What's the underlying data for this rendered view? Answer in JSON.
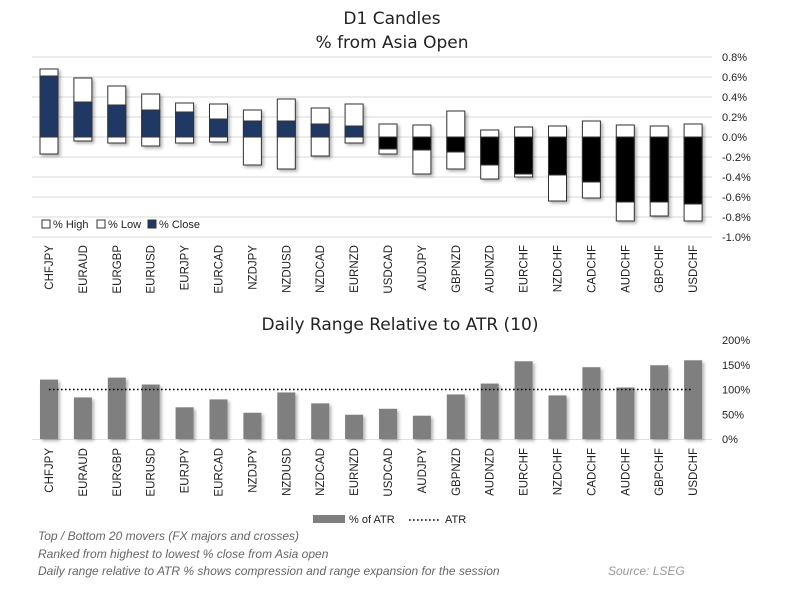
{
  "chart_data": [
    {
      "type": "candlestick",
      "title": "D1 Candles",
      "subtitle": "% from Asia Open",
      "categories": [
        "CHFJPY",
        "EURAUD",
        "EURGBP",
        "EURUSD",
        "EURJPY",
        "EURCAD",
        "NZDJPY",
        "NZDUSD",
        "NZDCAD",
        "EURNZD",
        "USDCAD",
        "AUDJPY",
        "GBPNZD",
        "AUDNZD",
        "EURCHF",
        "NZDCHF",
        "CADCHF",
        "AUDCHF",
        "GBPCHF",
        "USDCHF"
      ],
      "series": [
        {
          "name": "% High",
          "values": [
            0.68,
            0.59,
            0.51,
            0.43,
            0.34,
            0.33,
            0.27,
            0.38,
            0.29,
            0.33,
            0.13,
            0.12,
            0.26,
            0.07,
            0.1,
            0.11,
            0.16,
            0.12,
            0.11,
            0.13
          ]
        },
        {
          "name": "% Low",
          "values": [
            -0.17,
            -0.04,
            -0.06,
            -0.09,
            -0.06,
            -0.05,
            -0.28,
            -0.32,
            -0.19,
            -0.06,
            -0.17,
            -0.37,
            -0.32,
            -0.42,
            -0.4,
            -0.64,
            -0.61,
            -0.84,
            -0.79,
            -0.84
          ]
        },
        {
          "name": "% Close",
          "values": [
            0.61,
            0.35,
            0.32,
            0.27,
            0.25,
            0.18,
            0.16,
            0.16,
            0.13,
            0.11,
            -0.12,
            -0.13,
            -0.15,
            -0.28,
            -0.37,
            -0.38,
            -0.45,
            -0.65,
            -0.65,
            -0.67
          ]
        }
      ],
      "ylim": [
        -1.0,
        0.8
      ],
      "yticks": [
        "0.8%",
        "0.6%",
        "0.4%",
        "0.2%",
        "0.0%",
        "-0.2%",
        "-0.4%",
        "-0.6%",
        "-0.8%",
        "-1.0%"
      ],
      "y_axis_side": "right",
      "grid": true,
      "legend": "bottom-left",
      "colors": {
        "positive_close": "#1f3864",
        "negative_close": "#000000",
        "range": "#ffffff"
      }
    },
    {
      "type": "bar",
      "title": "Daily Range Relative to ATR (10)",
      "categories": [
        "CHFJPY",
        "EURAUD",
        "EURGBP",
        "EURUSD",
        "EURJPY",
        "EURCAD",
        "NZDJPY",
        "NZDUSD",
        "NZDCAD",
        "EURNZD",
        "USDCAD",
        "AUDJPY",
        "GBPNZD",
        "AUDNZD",
        "EURCHF",
        "NZDCHF",
        "CADCHF",
        "AUDCHF",
        "GBPCHF",
        "USDCHF"
      ],
      "series": [
        {
          "name": "% of ATR",
          "values": [
            120,
            84,
            124,
            110,
            64,
            80,
            53,
            94,
            72,
            49,
            61,
            47,
            90,
            112,
            157,
            88,
            145,
            104,
            149,
            159
          ]
        },
        {
          "name": "ATR",
          "values": [
            100,
            100,
            100,
            100,
            100,
            100,
            100,
            100,
            100,
            100,
            100,
            100,
            100,
            100,
            100,
            100,
            100,
            100,
            100,
            100
          ]
        }
      ],
      "ylim": [
        0,
        200
      ],
      "yticks": [
        "200%",
        "150%",
        "100%",
        "50%",
        "0%"
      ],
      "y_axis_side": "right",
      "grid": false,
      "legend": "bottom-center",
      "colors": {
        "bar": "#7f7f7f",
        "atr_line": "#000000"
      }
    }
  ],
  "notes": [
    "Top / Bottom 20 movers (FX majors and crosses)",
    "Ranked from highest to lowest % close from Asia open",
    "Daily range relative to ATR % shows compression and range expansion for the session"
  ],
  "source": "Source: LSEG"
}
